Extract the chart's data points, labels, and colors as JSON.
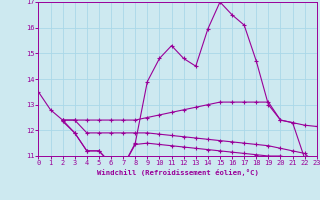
{
  "xlabel": "Windchill (Refroidissement éolien,°C)",
  "background_color": "#cde9f0",
  "line_color": "#990099",
  "grid_color": "#aad8e8",
  "xmin": 0,
  "xmax": 23,
  "ymin": 11,
  "ymax": 17,
  "yticks": [
    11,
    12,
    13,
    14,
    15,
    16,
    17
  ],
  "xticks": [
    0,
    1,
    2,
    3,
    4,
    5,
    6,
    7,
    8,
    9,
    10,
    11,
    12,
    13,
    14,
    15,
    16,
    17,
    18,
    19,
    20,
    21,
    22,
    23
  ],
  "series": [
    {
      "x": [
        0,
        1,
        2,
        3,
        4,
        5,
        6,
        7,
        8,
        9,
        10,
        11,
        12,
        13,
        14,
        15,
        16,
        17,
        18,
        19,
        20,
        21,
        22,
        23
      ],
      "y": [
        13.5,
        12.8,
        12.4,
        11.9,
        11.2,
        11.2,
        10.7,
        10.6,
        11.5,
        13.9,
        14.8,
        15.3,
        14.8,
        14.5,
        15.95,
        17.0,
        16.5,
        16.1,
        14.7,
        13.0,
        12.4,
        12.3,
        10.9,
        10.6
      ]
    },
    {
      "x": [
        2,
        3,
        4,
        5,
        6,
        7,
        8,
        9,
        10,
        11,
        12,
        13,
        14,
        15,
        16,
        17,
        18,
        19,
        20,
        21,
        22,
        23
      ],
      "y": [
        12.4,
        12.4,
        12.4,
        12.4,
        12.4,
        12.4,
        12.4,
        12.5,
        12.6,
        12.7,
        12.8,
        12.9,
        13.0,
        13.1,
        13.1,
        13.1,
        13.1,
        13.1,
        12.4,
        12.3,
        12.2,
        12.15
      ]
    },
    {
      "x": [
        2,
        3,
        4,
        5,
        6,
        7,
        8,
        9,
        10,
        11,
        12,
        13,
        14,
        15,
        16,
        17,
        18,
        19,
        20,
        21,
        22,
        23
      ],
      "y": [
        12.4,
        12.4,
        11.9,
        11.9,
        11.9,
        11.9,
        11.9,
        11.9,
        11.85,
        11.8,
        11.75,
        11.7,
        11.65,
        11.6,
        11.55,
        11.5,
        11.45,
        11.4,
        11.3,
        11.2,
        11.1,
        10.65
      ]
    },
    {
      "x": [
        2,
        3,
        4,
        5,
        6,
        7,
        8,
        9,
        10,
        11,
        12,
        13,
        14,
        15,
        16,
        17,
        18,
        19,
        20,
        21,
        22,
        23
      ],
      "y": [
        12.35,
        11.9,
        11.2,
        11.2,
        10.7,
        10.6,
        11.45,
        11.5,
        11.45,
        11.4,
        11.35,
        11.3,
        11.25,
        11.2,
        11.15,
        11.1,
        11.05,
        11.0,
        11.0,
        10.9,
        10.8,
        10.65
      ]
    }
  ]
}
